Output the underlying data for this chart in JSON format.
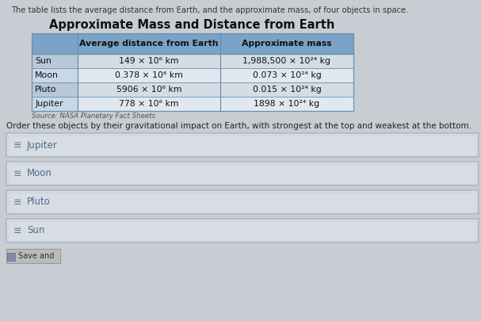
{
  "page_bg": "#c8cdd4",
  "intro_text": "The table lists the average distance from Earth, and the approximate mass, of four objects in space.",
  "table_title": "Approximate Mass and Distance from Earth",
  "col_headers_1": "Average distance from Earth",
  "col_headers_2": "Approximate mass",
  "rows": [
    {
      "name": "Sun",
      "distance": "149 × 10⁶ km",
      "mass": "1,988,500 × 10²⁴ kg"
    },
    {
      "name": "Moon",
      "distance": "0.378 × 10⁶ km",
      "mass": "0.073 × 10²⁴ kg"
    },
    {
      "name": "Pluto",
      "distance": "5906 × 10⁶ km",
      "mass": "0.015 × 10²⁴ kg"
    },
    {
      "name": "Jupiter",
      "distance": "778 × 10⁶ km",
      "mass": "1898 × 10²⁴ kg"
    }
  ],
  "source_text": "Source: NASA Planetary Fact Sheets",
  "order_text": "Order these objects by their gravitational impact on Earth, with strongest at the top and weakest at the bottom.",
  "drag_items": [
    "Jupiter",
    "Moon",
    "Pluto",
    "Sun"
  ],
  "drag_icon": "≡",
  "save_label": "Save and",
  "table_header_bg": "#7ba3c8",
  "table_name_col_bg": "#b8c8d8",
  "table_data_col_bg": "#d4dce6",
  "table_border": "#6a8fa8",
  "drag_box_bg": "#d8dde4",
  "drag_box_border_outer": "#b0b8c4",
  "drag_box_border_inner": "#c8d0dc",
  "drag_icon_color": "#5a7a9a",
  "drag_text_color": "#4a6a8a",
  "title_color": "#111111",
  "header_text_color": "#111111",
  "intro_text_color": "#333333",
  "source_text_color": "#555555"
}
